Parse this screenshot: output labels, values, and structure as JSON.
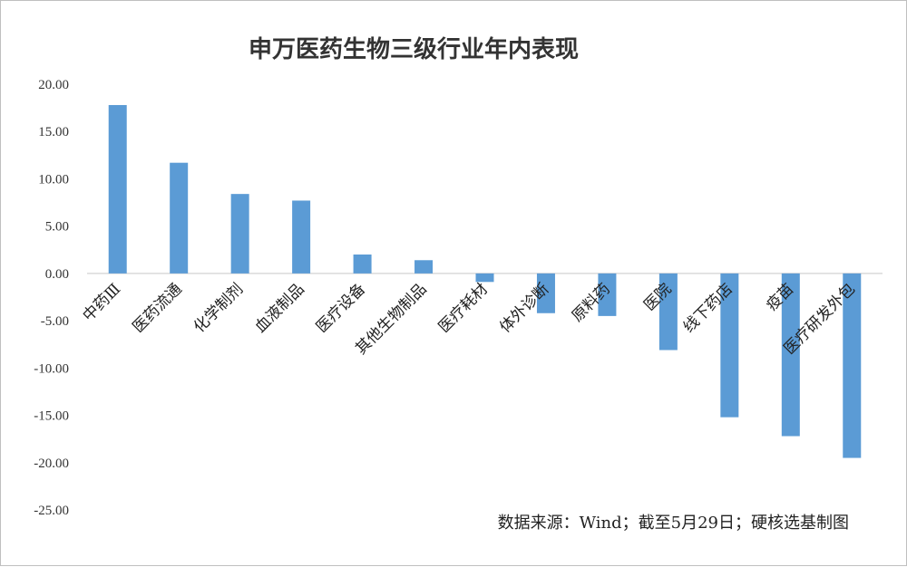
{
  "chart_data": {
    "type": "bar",
    "title": "申万医药生物三级行业年内表现",
    "source_note": "数据来源：Wind；截至5月29日；硬核选基制图",
    "categories": [
      "中药Ⅲ",
      "医药流通",
      "化学制剂",
      "血液制品",
      "医疗设备",
      "其他生物制品",
      "医疗耗材",
      "体外诊断",
      "原料药",
      "医院",
      "线下药店",
      "疫苗",
      "医疗研发外包"
    ],
    "values": [
      17.8,
      11.7,
      8.4,
      7.7,
      2.0,
      1.4,
      -0.9,
      -4.2,
      -4.5,
      -8.1,
      -15.2,
      -17.2,
      -19.5
    ],
    "y_ticks": [
      "20.00",
      "15.00",
      "10.00",
      "5.00",
      "0.00",
      "-5.00",
      "-10.00",
      "-15.00",
      "-20.00",
      "-25.00"
    ],
    "ylim": [
      -25,
      20
    ],
    "xlabel": "",
    "ylabel": "",
    "grid": false,
    "bar_color": "#5b9bd5"
  }
}
